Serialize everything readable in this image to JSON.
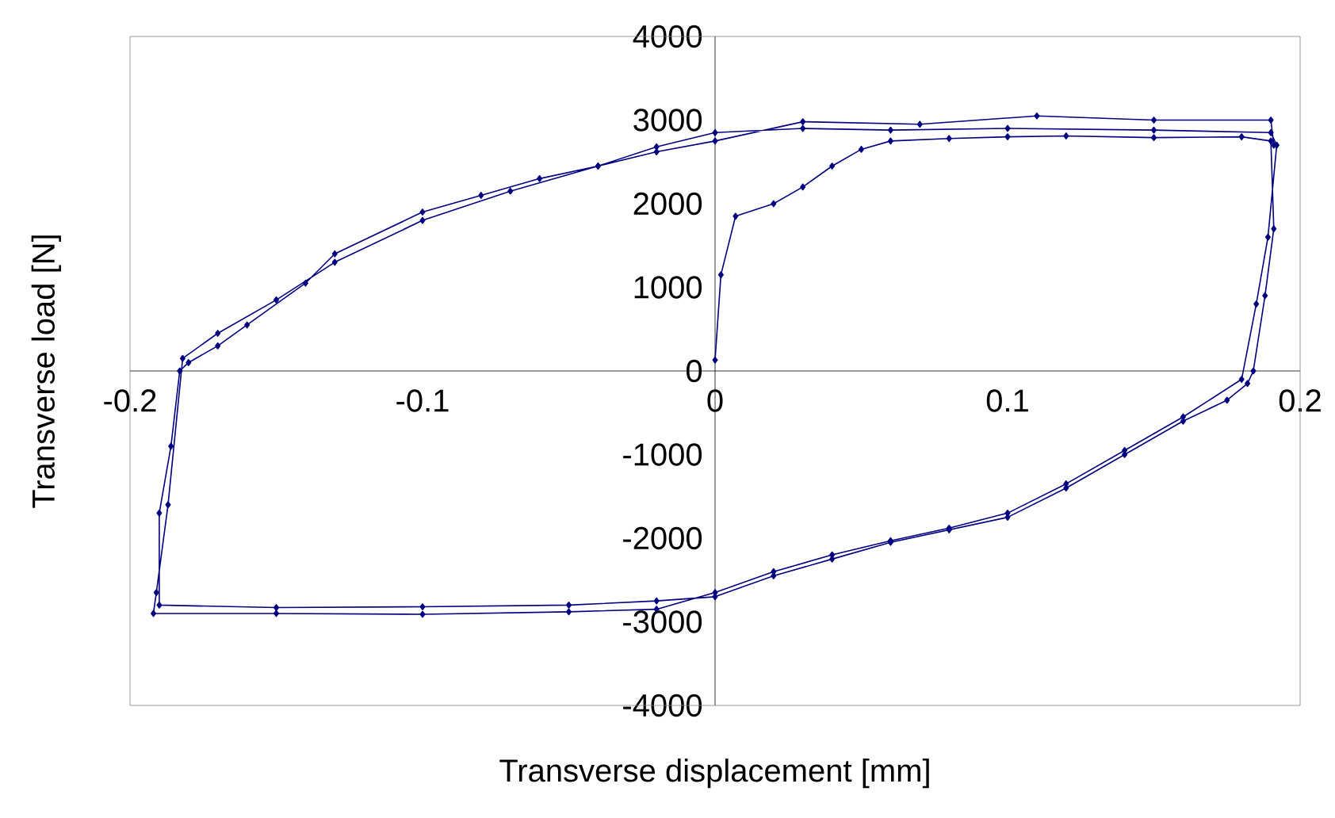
{
  "chart_data": {
    "type": "line",
    "xlabel": "Transverse displacement [mm]",
    "ylabel": "Transverse load [N]",
    "xlim": [
      -0.2,
      0.2
    ],
    "ylim": [
      -4000,
      4000
    ],
    "xticks": [
      -0.2,
      -0.1,
      0,
      0.1,
      0.2
    ],
    "yticks": [
      -4000,
      -3000,
      -2000,
      -1000,
      0,
      1000,
      2000,
      3000,
      4000
    ],
    "marker": "diamond",
    "series": [
      {
        "color": "#000080",
        "x": [
          0,
          0.002,
          0.007,
          0.02,
          0.03,
          0.04,
          0.05,
          0.06,
          0.08,
          0.1,
          0.12,
          0.15,
          0.18,
          0.19,
          0.191,
          0.188,
          0.184,
          0.182,
          0.175,
          0.16,
          0.14,
          0.12,
          0.1,
          0.08,
          0.06,
          0.04,
          0.02,
          0,
          -0.02,
          -0.05,
          -0.1,
          -0.15,
          -0.19,
          -0.19,
          -0.186,
          -0.183,
          -0.18,
          -0.17,
          -0.16,
          -0.14,
          -0.13,
          -0.1,
          -0.08,
          -0.06,
          -0.04,
          -0.02,
          0,
          0.03,
          0.06,
          0.1,
          0.15,
          0.19,
          0.192,
          0.189,
          0.185,
          0.18,
          0.16,
          0.14,
          0.12,
          0.1,
          0.08,
          0.06,
          0.04,
          0.02,
          0,
          -0.02,
          -0.05,
          -0.1,
          -0.15,
          -0.192,
          -0.191,
          -0.187,
          -0.182,
          -0.17,
          -0.15,
          -0.13,
          -0.1,
          -0.07,
          -0.04,
          -0.02,
          0,
          0.03,
          0.07,
          0.11,
          0.15,
          0.19,
          0.191
        ],
        "values": [
          130,
          1150,
          1850,
          2000,
          2200,
          2450,
          2650,
          2750,
          2780,
          2800,
          2810,
          2790,
          2800,
          2750,
          1700,
          900,
          0,
          -150,
          -350,
          -600,
          -1000,
          -1400,
          -1750,
          -1900,
          -2050,
          -2250,
          -2450,
          -2700,
          -2750,
          -2800,
          -2820,
          -2830,
          -2800,
          -1700,
          -900,
          0,
          100,
          300,
          550,
          1050,
          1400,
          1900,
          2100,
          2300,
          2450,
          2680,
          2850,
          2900,
          2880,
          2900,
          2880,
          2850,
          2700,
          1600,
          800,
          -100,
          -550,
          -950,
          -1350,
          -1700,
          -1880,
          -2030,
          -2200,
          -2400,
          -2650,
          -2850,
          -2880,
          -2910,
          -2900,
          -2900,
          -2650,
          -1600,
          150,
          450,
          850,
          1300,
          1800,
          2150,
          2450,
          2620,
          2750,
          2980,
          2950,
          3050,
          3000,
          3000,
          2700
        ]
      }
    ]
  }
}
